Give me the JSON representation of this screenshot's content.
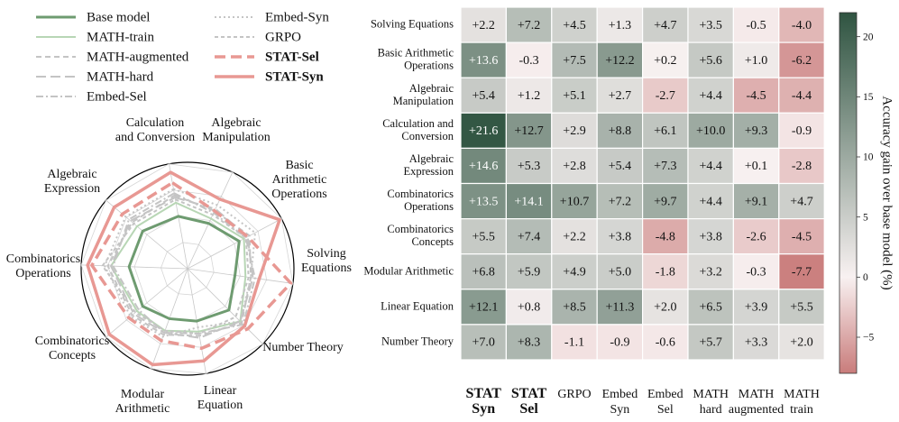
{
  "chart_data": [
    {
      "type": "radar",
      "legend": [
        {
          "name": "Base model",
          "color": "#6e9b70",
          "dash": "solid",
          "width": 3,
          "bold": false
        },
        {
          "name": "MATH-train",
          "color": "#b8d6b5",
          "dash": "solid",
          "width": 2,
          "bold": false
        },
        {
          "name": "MATH-augmented",
          "color": "#c4c4c4",
          "dash": "dash",
          "width": 2,
          "bold": false
        },
        {
          "name": "MATH-hard",
          "color": "#c4c4c4",
          "dash": "longdash",
          "width": 2,
          "bold": false
        },
        {
          "name": "Embed-Sel",
          "color": "#c4c4c4",
          "dash": "dashdot",
          "width": 2,
          "bold": false
        },
        {
          "name": "Embed-Syn",
          "color": "#c4c4c4",
          "dash": "dot",
          "width": 2,
          "bold": false
        },
        {
          "name": "GRPO",
          "color": "#c4c4c4",
          "dash": "smalldash",
          "width": 2,
          "bold": false
        },
        {
          "name": "STAT-Sel",
          "color": "#e89893",
          "dash": "bigdash",
          "width": 3.5,
          "bold": true
        },
        {
          "name": "STAT-Syn",
          "color": "#e89893",
          "dash": "solid",
          "width": 3.5,
          "bold": true
        }
      ],
      "axes": [
        "Calculation\nand Conversion",
        "Algebraic\nManipulation",
        "Basic\nArithmetic\nOperations",
        "Solving\nEquations",
        "Number Theory",
        "Linear\nEquation",
        "Modular\nArithmetic",
        "Combinatorics\nConcepts",
        "Combinatorics\nOperations",
        "Algebraic\nExpression"
      ],
      "axis_angles_deg": [
        -100,
        -65,
        -28,
        8,
        45,
        80,
        110,
        140,
        182,
        220
      ],
      "series": [
        {
          "name": "Base model",
          "values": [
            0.5,
            0.47,
            0.55,
            0.45,
            0.55,
            0.5,
            0.5,
            0.55,
            0.55,
            0.55
          ]
        },
        {
          "name": "MATH-train",
          "values": [
            0.63,
            0.52,
            0.6,
            0.55,
            0.7,
            0.6,
            0.62,
            0.62,
            0.72,
            0.62
          ]
        },
        {
          "name": "MATH-augmented",
          "values": [
            0.7,
            0.6,
            0.66,
            0.6,
            0.72,
            0.64,
            0.66,
            0.68,
            0.75,
            0.68
          ]
        },
        {
          "name": "MATH-hard",
          "values": [
            0.68,
            0.62,
            0.64,
            0.62,
            0.7,
            0.66,
            0.64,
            0.66,
            0.72,
            0.7
          ]
        },
        {
          "name": "Embed-Sel",
          "values": [
            0.72,
            0.58,
            0.62,
            0.64,
            0.74,
            0.62,
            0.64,
            0.6,
            0.7,
            0.72
          ]
        },
        {
          "name": "Embed-Syn",
          "values": [
            0.76,
            0.66,
            0.72,
            0.6,
            0.7,
            0.56,
            0.68,
            0.7,
            0.78,
            0.76
          ]
        },
        {
          "name": "GRPO",
          "values": [
            0.66,
            0.56,
            0.62,
            0.58,
            0.64,
            0.62,
            0.62,
            0.64,
            0.8,
            0.66
          ]
        },
        {
          "name": "STAT-Sel",
          "values": [
            0.82,
            0.6,
            0.64,
            0.98,
            0.8,
            0.76,
            0.72,
            0.72,
            0.9,
            0.8
          ]
        },
        {
          "name": "STAT-Syn",
          "values": [
            0.92,
            0.72,
            0.98,
            0.68,
            0.76,
            0.88,
            0.96,
            0.96,
            0.94,
            0.9
          ]
        }
      ]
    },
    {
      "type": "heatmap",
      "rows": [
        "Solving Equations",
        "Basic Arithmetic\nOperations",
        "Algebraic\nManipulation",
        "Calculation and\nConversion",
        "Algebraic\nExpression",
        "Combinatorics\nOperations",
        "Combinatorics\nConcepts",
        "Modular Arithmetic",
        "Linear Equation",
        "Number Theory"
      ],
      "columns": [
        {
          "label": "STAT\nSyn",
          "bold": true
        },
        {
          "label": "STAT\nSel",
          "bold": true
        },
        {
          "label": "GRPO",
          "bold": false
        },
        {
          "label": "Embed\nSyn",
          "bold": false
        },
        {
          "label": "Embed\nSel",
          "bold": false
        },
        {
          "label": "MATH\nhard",
          "bold": false
        },
        {
          "label": "MATH\naugmented",
          "bold": false
        },
        {
          "label": "MATH\ntrain",
          "bold": false
        }
      ],
      "values": [
        [
          2.2,
          7.2,
          4.5,
          1.3,
          4.7,
          3.5,
          -0.5,
          -4.0
        ],
        [
          13.6,
          -0.3,
          7.5,
          12.2,
          0.2,
          5.6,
          1.0,
          -6.2
        ],
        [
          5.4,
          1.2,
          5.1,
          2.7,
          -2.7,
          4.4,
          -4.5,
          -4.4
        ],
        [
          21.6,
          12.7,
          2.9,
          8.8,
          6.1,
          10.0,
          9.3,
          -0.9
        ],
        [
          14.6,
          5.3,
          2.8,
          5.4,
          7.3,
          4.4,
          0.1,
          -2.8
        ],
        [
          13.5,
          14.1,
          10.7,
          7.2,
          9.7,
          4.4,
          9.1,
          4.7
        ],
        [
          5.5,
          7.4,
          2.2,
          3.8,
          -4.8,
          3.8,
          -2.6,
          -4.5
        ],
        [
          6.8,
          5.9,
          4.9,
          5.0,
          -1.8,
          3.2,
          -0.3,
          -7.7
        ],
        [
          12.1,
          0.8,
          8.5,
          11.3,
          2.0,
          6.5,
          3.9,
          5.5
        ],
        [
          7.0,
          8.3,
          -1.1,
          -0.9,
          -0.6,
          5.7,
          3.3,
          2.0
        ]
      ],
      "colorbar": {
        "label": "Accuracy gain over base model (%)",
        "range": [
          -8,
          22
        ],
        "ticks": [
          -5,
          0,
          5,
          10,
          15,
          20
        ],
        "colors": {
          "min": "#c97c7b",
          "mid": "#f8f1f1",
          "max": "#2f5441"
        }
      }
    }
  ]
}
